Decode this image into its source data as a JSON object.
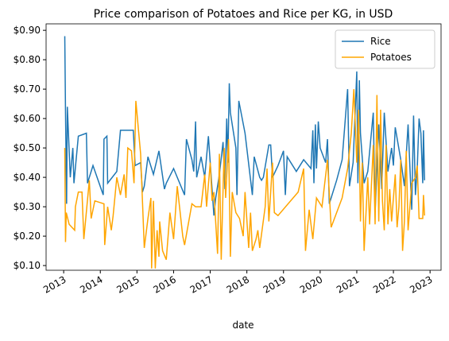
{
  "chart_data": {
    "type": "line",
    "title": "Price comparison of Potatoes and Rice per KG, in USD",
    "xlabel": "date",
    "xlim": [
      2012.52,
      2023.3
    ],
    "xticks": [
      2013,
      2014,
      2015,
      2016,
      2017,
      2018,
      2019,
      2020,
      2021,
      2022,
      2023
    ],
    "ylim": [
      0.084,
      0.922
    ],
    "yticks": [
      {
        "value": 0.1,
        "label": "$0.10"
      },
      {
        "value": 0.2,
        "label": "$0.20"
      },
      {
        "value": 0.3,
        "label": "$0.30"
      },
      {
        "value": 0.4,
        "label": "$0.40"
      },
      {
        "value": 0.5,
        "label": "$0.50"
      },
      {
        "value": 0.6,
        "label": "$0.60"
      },
      {
        "value": 0.7,
        "label": "$0.70"
      },
      {
        "value": 0.8,
        "label": "$0.80"
      },
      {
        "value": 0.9,
        "label": "$0.90"
      }
    ],
    "legend": "upper right",
    "grid": false,
    "series": [
      {
        "name": "Rice",
        "color": "#1f77b4",
        "x": [
          2013.03,
          2013.05,
          2013.08,
          2013.1,
          2013.18,
          2013.25,
          2013.28,
          2013.4,
          2013.62,
          2013.65,
          2013.8,
          2014.08,
          2014.1,
          2014.18,
          2014.2,
          2014.45,
          2014.55,
          2014.9,
          2014.95,
          2015.1,
          2015.15,
          2015.2,
          2015.3,
          2015.45,
          2015.6,
          2015.75,
          2015.8,
          2016.0,
          2016.3,
          2016.35,
          2016.5,
          2016.55,
          2016.6,
          2016.63,
          2016.75,
          2016.85,
          2016.95,
          2017.1,
          2017.15,
          2017.25,
          2017.35,
          2017.4,
          2017.45,
          2017.48,
          2017.52,
          2017.55,
          2017.7,
          2017.73,
          2017.78,
          2017.95,
          2018.15,
          2018.2,
          2018.35,
          2018.4,
          2018.45,
          2018.6,
          2018.65,
          2018.7,
          2018.85,
          2019.0,
          2019.05,
          2019.1,
          2019.35,
          2019.55,
          2019.75,
          2019.8,
          2019.83,
          2019.87,
          2019.9,
          2019.95,
          2020.0,
          2020.15,
          2020.2,
          2020.25,
          2020.45,
          2020.6,
          2020.75,
          2020.8,
          2020.9,
          2021.0,
          2021.03,
          2021.07,
          2021.1,
          2021.2,
          2021.3,
          2021.45,
          2021.5,
          2021.6,
          2021.68,
          2021.75,
          2021.85,
          2021.95,
          2022.0,
          2022.05,
          2022.2,
          2022.3,
          2022.4,
          2022.5,
          2022.55,
          2022.6,
          2022.65,
          2022.7,
          2022.75,
          2022.8,
          2022.82,
          2022.85
        ],
        "values": [
          0.88,
          0.62,
          0.31,
          0.64,
          0.4,
          0.5,
          0.38,
          0.54,
          0.55,
          0.38,
          0.44,
          0.34,
          0.53,
          0.54,
          0.38,
          0.42,
          0.56,
          0.56,
          0.44,
          0.45,
          0.35,
          0.37,
          0.47,
          0.41,
          0.49,
          0.36,
          0.38,
          0.43,
          0.34,
          0.53,
          0.46,
          0.42,
          0.59,
          0.4,
          0.47,
          0.4,
          0.54,
          0.27,
          0.33,
          0.41,
          0.52,
          0.36,
          0.6,
          0.45,
          0.72,
          0.62,
          0.5,
          0.34,
          0.66,
          0.55,
          0.34,
          0.47,
          0.4,
          0.39,
          0.4,
          0.51,
          0.51,
          0.4,
          0.44,
          0.49,
          0.34,
          0.47,
          0.42,
          0.46,
          0.43,
          0.56,
          0.38,
          0.58,
          0.43,
          0.59,
          0.5,
          0.45,
          0.53,
          0.31,
          0.39,
          0.46,
          0.7,
          0.37,
          0.45,
          0.76,
          0.38,
          0.73,
          0.55,
          0.38,
          0.42,
          0.62,
          0.28,
          0.58,
          0.36,
          0.62,
          0.42,
          0.5,
          0.44,
          0.57,
          0.46,
          0.37,
          0.58,
          0.29,
          0.61,
          0.34,
          0.43,
          0.6,
          0.55,
          0.38,
          0.56,
          0.39
        ]
      },
      {
        "name": "Potatoes",
        "color": "#ffa500",
        "x": [
          2013.03,
          2013.05,
          2013.07,
          2013.15,
          2013.3,
          2013.32,
          2013.4,
          2013.5,
          2013.55,
          2013.7,
          2013.75,
          2013.85,
          2014.1,
          2014.12,
          2014.2,
          2014.3,
          2014.35,
          2014.45,
          2014.55,
          2014.65,
          2014.7,
          2014.75,
          2014.85,
          2014.92,
          2014.97,
          2015.1,
          2015.2,
          2015.3,
          2015.38,
          2015.4,
          2015.45,
          2015.5,
          2015.55,
          2015.6,
          2015.62,
          2015.7,
          2015.8,
          2015.9,
          2016.0,
          2016.1,
          2016.25,
          2016.3,
          2016.5,
          2016.6,
          2016.75,
          2016.85,
          2016.9,
          2017.0,
          2017.05,
          2017.1,
          2017.2,
          2017.25,
          2017.3,
          2017.38,
          2017.42,
          2017.5,
          2017.55,
          2017.6,
          2017.7,
          2017.8,
          2017.9,
          2017.95,
          2018.05,
          2018.1,
          2018.15,
          2018.25,
          2018.3,
          2018.35,
          2018.5,
          2018.55,
          2018.6,
          2018.7,
          2018.75,
          2018.85,
          2019.4,
          2019.55,
          2019.6,
          2019.7,
          2019.8,
          2019.9,
          2020.05,
          2020.2,
          2020.3,
          2020.6,
          2020.75,
          2020.85,
          2020.92,
          2021.0,
          2021.05,
          2021.1,
          2021.15,
          2021.2,
          2021.3,
          2021.35,
          2021.45,
          2021.5,
          2021.55,
          2021.6,
          2021.65,
          2021.7,
          2021.75,
          2021.8,
          2021.85,
          2021.9,
          2021.95,
          2022.05,
          2022.1,
          2022.15,
          2022.2,
          2022.25,
          2022.3,
          2022.35,
          2022.4,
          2022.5,
          2022.6,
          2022.65,
          2022.7,
          2022.8,
          2022.82,
          2022.85
        ],
        "values": [
          0.5,
          0.18,
          0.28,
          0.24,
          0.22,
          0.3,
          0.35,
          0.35,
          0.19,
          0.39,
          0.26,
          0.32,
          0.31,
          0.17,
          0.3,
          0.22,
          0.27,
          0.4,
          0.34,
          0.41,
          0.33,
          0.5,
          0.49,
          0.38,
          0.66,
          0.48,
          0.16,
          0.26,
          0.33,
          0.09,
          0.32,
          0.09,
          0.22,
          0.13,
          0.25,
          0.15,
          0.12,
          0.28,
          0.19,
          0.37,
          0.2,
          0.17,
          0.31,
          0.3,
          0.3,
          0.41,
          0.3,
          0.45,
          0.32,
          0.35,
          0.14,
          0.48,
          0.12,
          0.5,
          0.33,
          0.53,
          0.13,
          0.35,
          0.28,
          0.26,
          0.2,
          0.35,
          0.16,
          0.28,
          0.15,
          0.19,
          0.22,
          0.16,
          0.3,
          0.43,
          0.25,
          0.45,
          0.28,
          0.27,
          0.35,
          0.43,
          0.15,
          0.29,
          0.19,
          0.33,
          0.3,
          0.46,
          0.23,
          0.33,
          0.43,
          0.55,
          0.7,
          0.45,
          0.63,
          0.25,
          0.45,
          0.15,
          0.4,
          0.24,
          0.51,
          0.24,
          0.68,
          0.25,
          0.63,
          0.32,
          0.22,
          0.51,
          0.24,
          0.36,
          0.25,
          0.41,
          0.23,
          0.3,
          0.46,
          0.15,
          0.25,
          0.49,
          0.22,
          0.38,
          0.4,
          0.44,
          0.26,
          0.26,
          0.34,
          0.27
        ]
      }
    ]
  }
}
